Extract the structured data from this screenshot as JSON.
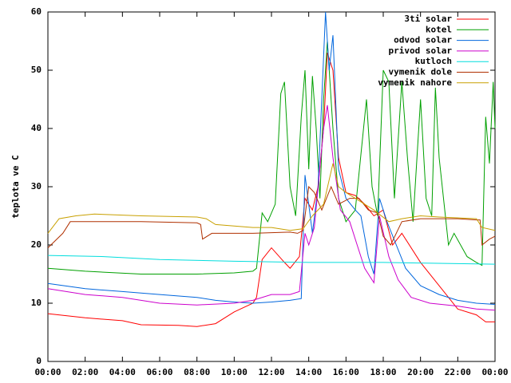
{
  "chart_data": {
    "type": "line",
    "ylabel": "teplota ve C",
    "legend": "upper right",
    "grid": false,
    "xlim": [
      0,
      24
    ],
    "ylim": [
      0,
      60
    ],
    "yticks": [
      0,
      10,
      20,
      30,
      40,
      50,
      60
    ],
    "xticks": [
      {
        "value": 0,
        "label": "00:00"
      },
      {
        "value": 2,
        "label": "02:00"
      },
      {
        "value": 4,
        "label": "04:00"
      },
      {
        "value": 6,
        "label": "06:00"
      },
      {
        "value": 8,
        "label": "08:00"
      },
      {
        "value": 10,
        "label": "10:00"
      },
      {
        "value": 12,
        "label": "12:00"
      },
      {
        "value": 14,
        "label": "14:00"
      },
      {
        "value": 16,
        "label": "16:00"
      },
      {
        "value": 18,
        "label": "18:00"
      },
      {
        "value": 20,
        "label": "20:00"
      },
      {
        "value": 22,
        "label": "22:00"
      },
      {
        "value": 24,
        "label": "00:00"
      }
    ],
    "series": [
      {
        "name": "3ti solar",
        "color": "#ff0000",
        "x": [
          0,
          2,
          4,
          5,
          7,
          8,
          9,
          10,
          11,
          11.2,
          11.5,
          12,
          12.7,
          13,
          13.5,
          13.8,
          14.2,
          14.5,
          14.8,
          15,
          15.3,
          15.6,
          16,
          16.5,
          17,
          17.5,
          18,
          18.5,
          19,
          20,
          21,
          21.5,
          22,
          23,
          23.5,
          24
        ],
        "values": [
          8.2,
          7.5,
          7,
          6.3,
          6.2,
          6,
          6.5,
          8.5,
          10,
          11,
          17.5,
          19.5,
          17,
          16,
          18,
          28,
          26,
          30,
          40,
          53,
          50,
          35,
          29,
          28.5,
          27,
          25,
          26,
          20,
          22,
          17,
          13,
          11,
          9,
          8,
          6.8,
          6.8
        ]
      },
      {
        "name": "kotel",
        "color": "#00a000",
        "x": [
          0,
          2,
          5,
          8,
          10,
          11,
          11.2,
          11.5,
          11.8,
          12.2,
          12.5,
          12.7,
          13,
          13.3,
          13.6,
          13.8,
          14,
          14.2,
          14.4,
          14.6,
          14.8,
          15,
          15.3,
          15.6,
          16,
          16.5,
          17.1,
          17.4,
          17.7,
          18,
          18.3,
          18.6,
          19,
          19.3,
          19.6,
          20,
          20.3,
          20.6,
          20.8,
          21,
          21.5,
          21.8,
          22.5,
          23,
          23.3,
          23.5,
          23.7,
          23.9,
          24
        ],
        "values": [
          16,
          15.5,
          15,
          15,
          15.2,
          15.5,
          16,
          25.5,
          24,
          27,
          46,
          48,
          30,
          25,
          42,
          50,
          33,
          49,
          40,
          28,
          45,
          55,
          40,
          28,
          24,
          26,
          45,
          30,
          25,
          50,
          48,
          28,
          48,
          35,
          24,
          45,
          28,
          25,
          47,
          35,
          20,
          22,
          18,
          17,
          16.5,
          42,
          34,
          48,
          40
        ]
      },
      {
        "name": "odvod solar",
        "color": "#0066dd",
        "x": [
          0,
          2,
          4,
          6,
          8,
          9,
          10,
          11,
          12,
          13,
          13.6,
          13.8,
          14.2,
          14.5,
          14.9,
          15.1,
          15.3,
          15.6,
          16,
          16.5,
          16.8,
          17.2,
          17.5,
          17.8,
          18.2,
          18.7,
          19.2,
          20,
          21,
          22,
          23,
          24
        ],
        "values": [
          13.4,
          12.5,
          12,
          11.5,
          11,
          10.5,
          10.2,
          10,
          10.2,
          10.5,
          10.8,
          32,
          22,
          30,
          60,
          50,
          56,
          33,
          28,
          26,
          25,
          18,
          15,
          28,
          24,
          20,
          16,
          13,
          11.5,
          10.5,
          10,
          9.8
        ]
      },
      {
        "name": "privod solar",
        "color": "#cc00cc",
        "x": [
          0,
          2,
          4,
          5,
          6,
          8,
          10,
          11,
          12,
          13,
          13.5,
          13.8,
          14,
          14.3,
          14.8,
          15,
          15.3,
          15.7,
          16.2,
          16.6,
          17,
          17.5,
          17.8,
          18.3,
          18.8,
          19.5,
          20.5,
          22,
          23,
          24
        ],
        "values": [
          12.5,
          11.5,
          11,
          10.5,
          10,
          9.7,
          10,
          10.5,
          11.5,
          11.5,
          12,
          22,
          20,
          23,
          40,
          44,
          35,
          26,
          24,
          20,
          16,
          13.5,
          25,
          18,
          14,
          11,
          10,
          9.5,
          9,
          8.8
        ]
      },
      {
        "name": "kutloch",
        "color": "#00dddd",
        "x": [
          0,
          3,
          6,
          10,
          14,
          18,
          22,
          24
        ],
        "values": [
          18.2,
          18,
          17.5,
          17.2,
          17,
          17,
          16.8,
          16.7
        ]
      },
      {
        "name": "vymenik dole",
        "color": "#b03000",
        "x": [
          0,
          0.8,
          1.2,
          5,
          8,
          8.2,
          8.3,
          8.8,
          11,
          13,
          13.4,
          13.7,
          14,
          14.3,
          14.7,
          15.2,
          15.6,
          16.2,
          16.7,
          17.2,
          17.7,
          18,
          18.4,
          19,
          20,
          22,
          23,
          23.2,
          23.3,
          23.7,
          24
        ],
        "values": [
          19.5,
          22,
          24,
          24,
          23.8,
          23.5,
          21,
          22,
          22,
          22.2,
          22,
          22.5,
          30,
          29,
          26,
          30,
          27,
          28,
          28,
          26,
          25.5,
          21.5,
          20,
          24,
          24.5,
          24.5,
          24.3,
          24.3,
          20,
          21,
          21.5
        ]
      },
      {
        "name": "vymenik nahore",
        "color": "#c8a000",
        "x": [
          0,
          0.6,
          1.5,
          2.5,
          5,
          8,
          8.5,
          9,
          11,
          12,
          13,
          13.7,
          14.2,
          14.8,
          15.3,
          15.6,
          16,
          16.5,
          17,
          17.5,
          18.3,
          19,
          20,
          21,
          23,
          23.3,
          24
        ],
        "values": [
          22,
          24.5,
          25,
          25.3,
          25,
          24.8,
          24.5,
          23.5,
          23,
          23,
          22.5,
          22.8,
          25,
          27,
          34,
          30,
          29,
          28,
          27,
          26,
          24,
          24.5,
          25,
          24.8,
          24.5,
          23,
          22.5
        ]
      }
    ]
  }
}
